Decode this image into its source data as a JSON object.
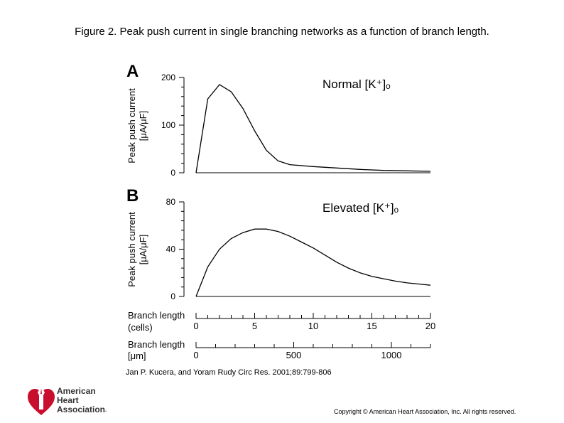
{
  "title": "Figure 2. Peak push current in single branching networks as a function of branch length.",
  "citation": "Jan P. Kucera, and Yoram Rudy Circ Res. 2001;89:799-806",
  "copyright": "Copyright © American Heart Association, Inc. All rights reserved.",
  "logo": {
    "line1": "American",
    "line2": "Heart",
    "line3": "Association",
    "mark": ".",
    "color": "#c8102e"
  },
  "chart_data": [
    {
      "type": "line",
      "panel_label": "A",
      "annotation": "Normal [K⁺]ₒ",
      "ylabel": "Peak push current",
      "yunit": "[μA/μF]",
      "ylim": [
        0,
        200
      ],
      "yticks": [
        0,
        100,
        200
      ],
      "x": [
        0,
        1,
        2,
        3,
        4,
        5,
        6,
        7,
        8,
        10,
        12,
        14,
        16,
        18,
        20
      ],
      "values": [
        0,
        155,
        185,
        170,
        135,
        88,
        47,
        25,
        17,
        13,
        10,
        7,
        5,
        4,
        3
      ]
    },
    {
      "type": "line",
      "panel_label": "B",
      "annotation": "Elevated [K⁺]ₒ",
      "ylabel": "Peak push current",
      "yunit": "[μA/μF]",
      "ylim": [
        0,
        80
      ],
      "yticks": [
        0,
        40,
        80
      ],
      "x": [
        0,
        1,
        2,
        3,
        4,
        5,
        6,
        7,
        8,
        9,
        10,
        11,
        12,
        13,
        14,
        15,
        16,
        17,
        18,
        19,
        20
      ],
      "values": [
        0,
        25,
        40,
        49,
        54,
        57,
        57,
        55,
        51,
        46,
        41,
        35,
        29,
        24,
        20,
        17,
        15,
        13,
        11.5,
        10.5,
        9.5
      ]
    }
  ],
  "x_axes": [
    {
      "label_line1": "Branch length",
      "label_line2": "(cells)",
      "min": 0,
      "max": 20,
      "ticks": [
        0,
        5,
        10,
        15,
        20
      ],
      "minor_step": 1
    },
    {
      "label_line1": "Branch length",
      "label_line2": "[μm]",
      "min": 0,
      "max": 1200,
      "ticks": [
        0,
        500,
        1000
      ],
      "minor_step": 100
    }
  ]
}
